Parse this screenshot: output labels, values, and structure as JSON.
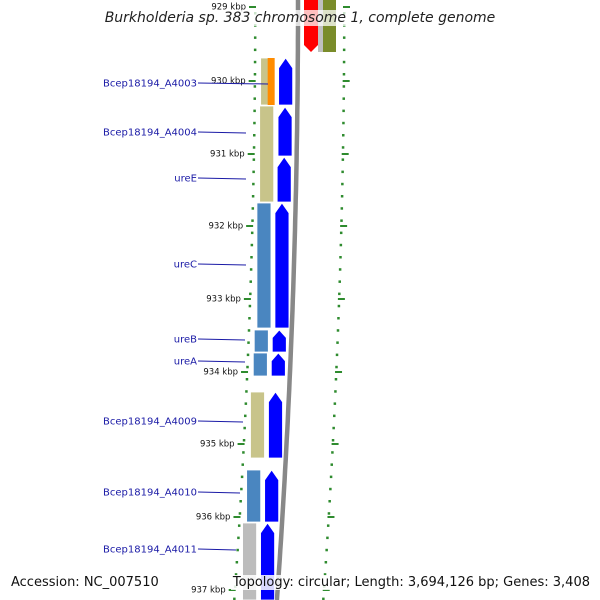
{
  "title": "Burkholderia sp. 383 chromosome 1, complete genome",
  "accession": "Accession: NC_007510",
  "topology": "Topology: circular; Length: 3,694,126 bp; Genes: 3,408",
  "colors": {
    "tick": "#2e8b2e",
    "cds": "#0000ff",
    "label": "#1a1aa6",
    "backbone": "#888888",
    "tan": "#c8c48a",
    "steel": "#4a86c0",
    "orange": "#ff8c00",
    "olive": "#7a8c2a",
    "red": "#ff0000",
    "grey": "#bcbcbc"
  },
  "ticks": [
    {
      "label": "929 kbp"
    },
    {
      "label": "930 kbp"
    },
    {
      "label": "931 kbp"
    },
    {
      "label": "932 kbp"
    },
    {
      "label": "933 kbp"
    },
    {
      "label": "934 kbp"
    },
    {
      "label": "935 kbp"
    },
    {
      "label": "936 kbp"
    },
    {
      "label": "937 kbp"
    }
  ],
  "genes": [
    {
      "name": "Bcep18194_A4003"
    },
    {
      "name": "Bcep18194_A4004"
    },
    {
      "name": "ureE"
    },
    {
      "name": "ureC"
    },
    {
      "name": "ureB"
    },
    {
      "name": "ureA"
    },
    {
      "name": "Bcep18194_A4009"
    },
    {
      "name": "Bcep18194_A4010"
    },
    {
      "name": "Bcep18194_A4011"
    }
  ]
}
